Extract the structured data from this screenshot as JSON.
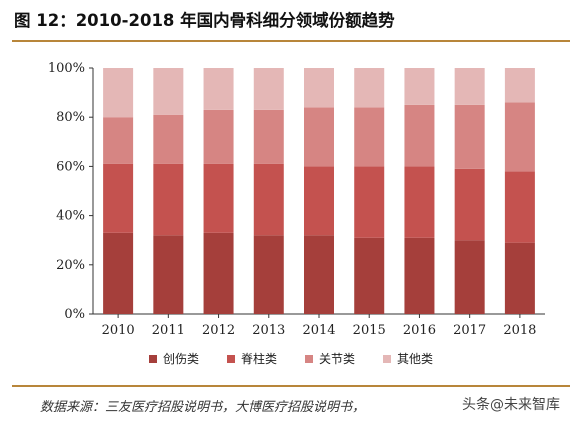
{
  "title": "图 12：2010-2018 年国内骨科细分领域份额趋势",
  "source": "数据来源：三友医疗招股说明书，大博医疗招股说明书，",
  "watermark": "头条@未来智库",
  "colors": {
    "rule": "#b8863a",
    "series": [
      "#a53f3b",
      "#c4524f",
      "#d68583",
      "#e4b7b6"
    ]
  },
  "chart_data": {
    "type": "bar",
    "stacked": true,
    "categories": [
      "2010",
      "2011",
      "2012",
      "2013",
      "2014",
      "2015",
      "2016",
      "2017",
      "2018"
    ],
    "series": [
      {
        "name": "创伤类",
        "values": [
          33,
          32,
          33,
          32,
          32,
          31,
          31,
          30,
          29
        ]
      },
      {
        "name": "脊柱类",
        "values": [
          28,
          29,
          28,
          29,
          28,
          29,
          29,
          29,
          29
        ]
      },
      {
        "name": "关节类",
        "values": [
          19,
          20,
          22,
          22,
          24,
          24,
          25,
          26,
          28
        ]
      },
      {
        "name": "其他类",
        "values": [
          20,
          19,
          17,
          17,
          16,
          16,
          15,
          15,
          14
        ]
      }
    ],
    "yticks": [
      "0%",
      "20%",
      "40%",
      "60%",
      "80%",
      "100%"
    ],
    "ylim": [
      0,
      100
    ],
    "grid": false,
    "legend": "bottom"
  }
}
